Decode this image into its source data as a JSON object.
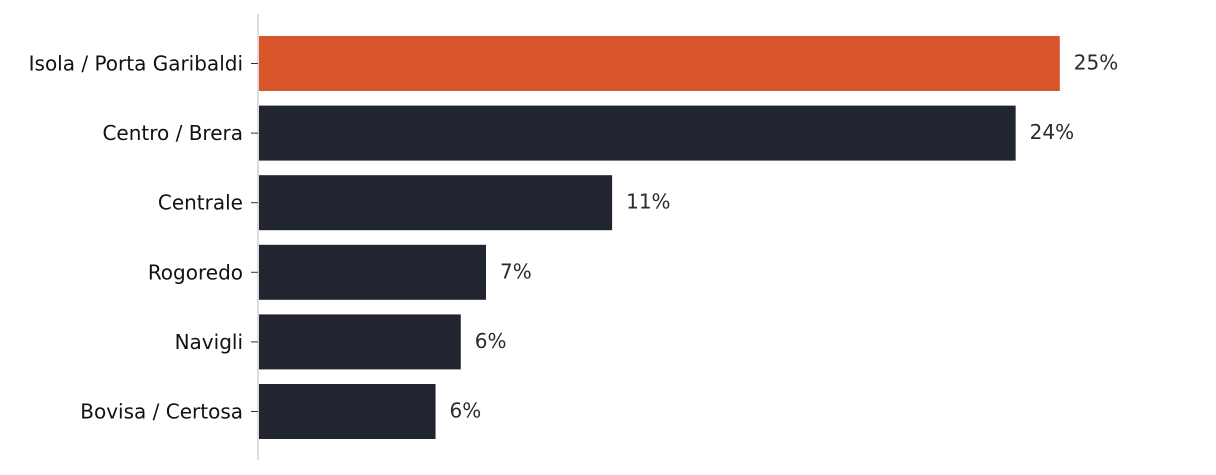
{
  "chart_data": {
    "type": "bar",
    "orientation": "horizontal",
    "categories": [
      "Isola / Porta Garibaldi",
      "Centro / Brera",
      "Centrale",
      "Rogoredo",
      "Navigli",
      "Bovisa / Certosa"
    ],
    "values": [
      25.4,
      24.0,
      11.2,
      7.2,
      6.4,
      5.6
    ],
    "value_labels": [
      "25%",
      "24%",
      "11%",
      "7%",
      "6%",
      "6%"
    ],
    "title": "",
    "xlabel": "",
    "ylabel": "",
    "xlim": [
      0,
      27.5
    ],
    "grid": false,
    "legend": "none",
    "colors": {
      "highlight": "#d9532b",
      "default": "#21252f",
      "axis": "#d0d0d0"
    },
    "highlight_index": 0
  }
}
